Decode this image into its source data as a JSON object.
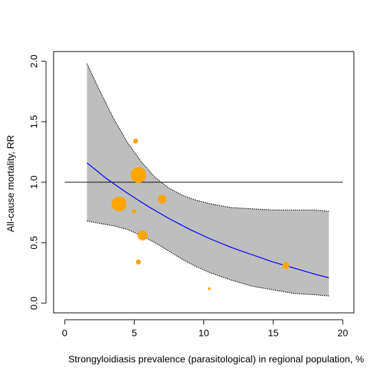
{
  "chart_data": {
    "type": "scatter",
    "title": "",
    "xlabel": "Strongyloidiasis prevalence (parasitological) in regional population, %",
    "ylabel": "All-cause mortality, RR",
    "xlim": [
      -0.8,
      20.8
    ],
    "ylim": [
      -0.08,
      2.08
    ],
    "x_ticks": [
      0,
      5,
      10,
      15,
      20
    ],
    "y_ticks": [
      0.0,
      0.5,
      1.0,
      1.5,
      2.0
    ],
    "x_tick_labels": [
      "0",
      "5",
      "10",
      "15",
      "20"
    ],
    "y_tick_labels": [
      "0.0",
      "0.5",
      "1.0",
      "1.5",
      "2.0"
    ],
    "grid": false,
    "reference_line": {
      "y": 1.0,
      "x_range": [
        0,
        20
      ]
    },
    "points": [
      {
        "x": 5.1,
        "y": 1.34,
        "size": 1
      },
      {
        "x": 5.3,
        "y": 1.06,
        "size": 10
      },
      {
        "x": 3.9,
        "y": 0.82,
        "size": 9
      },
      {
        "x": 7.0,
        "y": 0.86,
        "size": 3
      },
      {
        "x": 5.0,
        "y": 0.76,
        "size": 0.8
      },
      {
        "x": 5.6,
        "y": 0.56,
        "size": 4
      },
      {
        "x": 5.3,
        "y": 0.34,
        "size": 1
      },
      {
        "x": 15.9,
        "y": 0.31,
        "size": 2
      },
      {
        "x": 10.4,
        "y": 0.12,
        "size": 0.3
      }
    ],
    "fit_line": {
      "x": [
        1.6,
        3,
        4.5,
        6,
        7.5,
        9,
        10.5,
        12,
        13.5,
        15,
        16.5,
        18,
        19.0
      ],
      "y": [
        1.16,
        1.03,
        0.91,
        0.8,
        0.7,
        0.61,
        0.53,
        0.46,
        0.4,
        0.34,
        0.29,
        0.24,
        0.21
      ]
    },
    "confidence_band": {
      "x": [
        1.6,
        2.5,
        3.5,
        4.5,
        5.5,
        6.5,
        7.5,
        8.5,
        9.5,
        10.5,
        12,
        13.5,
        15,
        16.5,
        18,
        19.0
      ],
      "upper": [
        1.98,
        1.76,
        1.53,
        1.33,
        1.17,
        1.04,
        0.95,
        0.89,
        0.85,
        0.82,
        0.79,
        0.78,
        0.77,
        0.77,
        0.77,
        0.76
      ],
      "lower": [
        0.68,
        0.66,
        0.64,
        0.61,
        0.56,
        0.5,
        0.43,
        0.36,
        0.3,
        0.25,
        0.19,
        0.14,
        0.11,
        0.08,
        0.07,
        0.06
      ]
    },
    "colors": {
      "points": "#ffa500",
      "fit_line": "#0000ff",
      "band_fill": "#bebebe",
      "reference_line": "#000000",
      "axis": "#000000"
    }
  }
}
